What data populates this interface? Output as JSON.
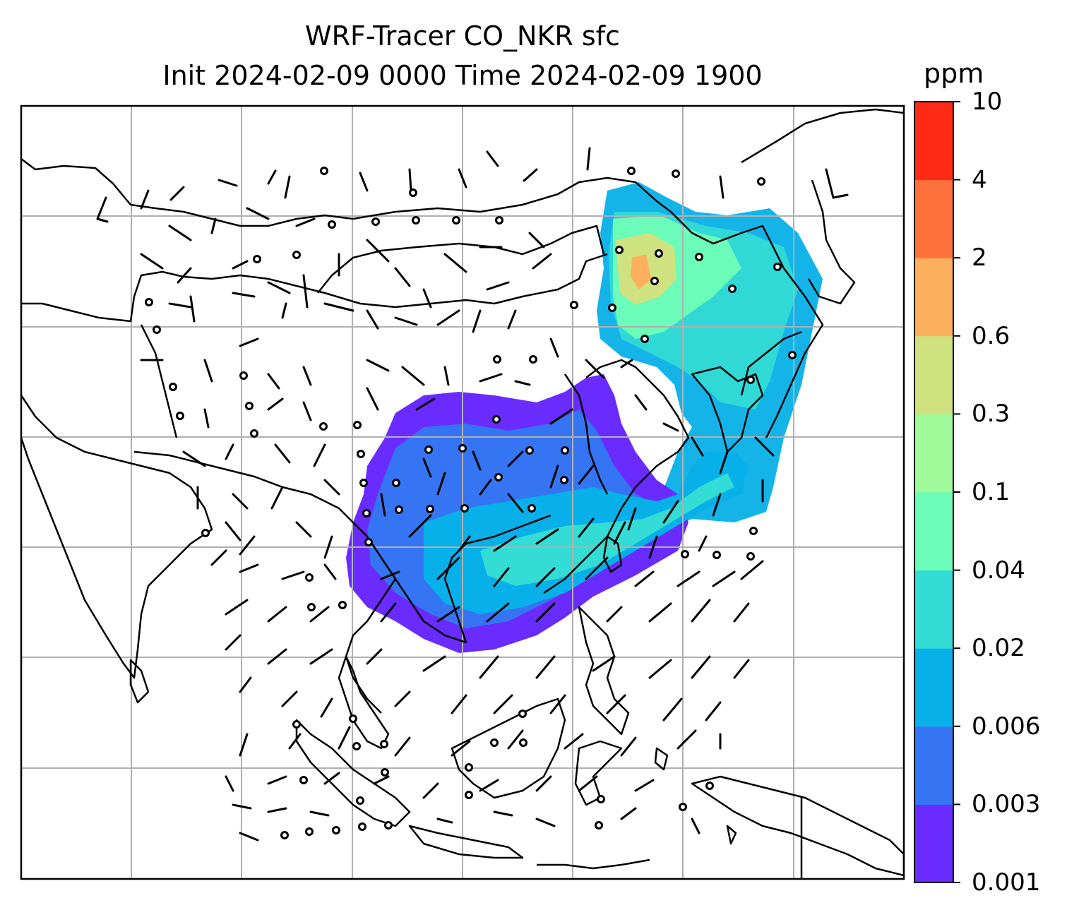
{
  "title": {
    "line1": "WRF-Tracer CO_NKR sfc",
    "line2": "Init 2024-02-09 0000 Time 2024-02-09 1900"
  },
  "colorbar": {
    "unit": "ppm",
    "levels": [
      "0.001",
      "0.003",
      "0.006",
      "0.02",
      "0.04",
      "0.1",
      "0.3",
      "0.6",
      "2",
      "4",
      "10"
    ],
    "colors": [
      "#6a2bff",
      "#3575f4",
      "#07b0e8",
      "#33dcd4",
      "#6afcb8",
      "#9ffa9a",
      "#cfe27f",
      "#fcb05d",
      "#ff713c",
      "#ff2a16"
    ]
  },
  "map": {
    "gridlines": true,
    "colors": {
      "coastline": "#000000",
      "grid": "#b0b0b0",
      "frame": "#000000"
    }
  }
}
